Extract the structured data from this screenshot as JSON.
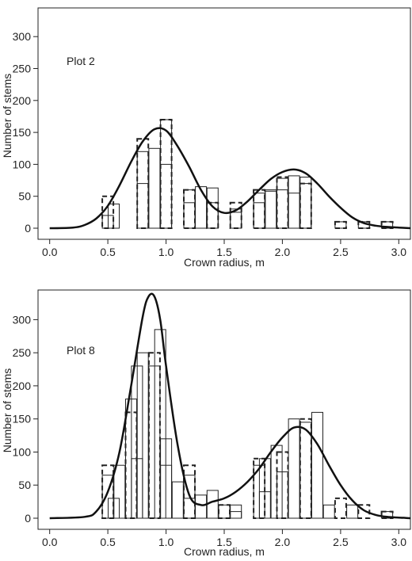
{
  "chart_data": [
    {
      "type": "bar",
      "annotation": "Plot 2",
      "xlabel": "Crown radius, m",
      "ylabel": "Number of stems",
      "xlim": [
        -0.1,
        3.1
      ],
      "ylim": [
        0,
        340
      ],
      "xticks": [
        "0.0",
        "0.5",
        "1.0",
        "1.5",
        "2.0",
        "2.5",
        "3.0"
      ],
      "yticks": [
        "0",
        "50",
        "100",
        "150",
        "200",
        "250",
        "300"
      ],
      "bar_width": 0.095,
      "series": [
        {
          "style": "solid-tall",
          "x": [
            0.55,
            0.8,
            0.9,
            1.0,
            1.2,
            1.3,
            1.4,
            1.6,
            1.8,
            1.9,
            2.0,
            2.1,
            2.2,
            2.5,
            2.7,
            2.9
          ],
          "values": [
            38,
            120,
            125,
            170,
            60,
            65,
            63,
            30,
            55,
            58,
            78,
            82,
            80,
            10,
            10,
            10
          ]
        },
        {
          "style": "solid-short",
          "x": [
            0.5,
            0.8,
            1.0,
            1.2,
            1.4,
            1.6,
            1.8,
            1.9,
            2.0,
            2.1,
            2.2
          ],
          "values": [
            20,
            70,
            100,
            40,
            40,
            25,
            40,
            60,
            60,
            55,
            70
          ]
        },
        {
          "style": "dashed",
          "x": [
            0.5,
            0.8,
            1.0,
            1.2,
            1.4,
            1.6,
            1.8,
            2.0,
            2.2,
            2.5,
            2.7,
            2.9
          ],
          "values": [
            50,
            140,
            170,
            60,
            40,
            40,
            60,
            80,
            70,
            10,
            10,
            10
          ]
        }
      ],
      "curve": {
        "x": [
          0.0,
          0.2,
          0.3,
          0.4,
          0.5,
          0.6,
          0.7,
          0.8,
          0.9,
          1.0,
          1.1,
          1.2,
          1.3,
          1.4,
          1.5,
          1.6,
          1.7,
          1.8,
          1.9,
          2.0,
          2.1,
          2.2,
          2.3,
          2.4,
          2.5,
          2.6,
          2.7,
          2.8,
          2.9,
          3.0,
          3.1
        ],
        "y": [
          0,
          1,
          5,
          15,
          35,
          67,
          104,
          136,
          155,
          153,
          128,
          96,
          60,
          34,
          24,
          28,
          42,
          60,
          77,
          88,
          92,
          86,
          70,
          50,
          32,
          17,
          8,
          4,
          2,
          1,
          0
        ]
      }
    },
    {
      "type": "bar",
      "annotation": "Plot 8",
      "xlabel": "Crown radius, m",
      "ylabel": "Number of stems",
      "xlim": [
        -0.1,
        3.1
      ],
      "ylim": [
        0,
        340
      ],
      "xticks": [
        "0.0",
        "0.5",
        "1.0",
        "1.5",
        "2.0",
        "2.5",
        "3.0"
      ],
      "yticks": [
        "0",
        "50",
        "100",
        "150",
        "200",
        "250",
        "300"
      ],
      "bar_width": 0.095,
      "series": [
        {
          "style": "solid-tall",
          "x": [
            0.5,
            0.6,
            0.7,
            0.75,
            0.8,
            0.9,
            0.95,
            1.0,
            1.1,
            1.2,
            1.3,
            1.4,
            1.5,
            1.6,
            1.8,
            1.85,
            1.95,
            2.1,
            2.3,
            2.4,
            2.6,
            2.9
          ],
          "values": [
            65,
            80,
            180,
            230,
            250,
            230,
            285,
            80,
            55,
            65,
            35,
            42,
            20,
            20,
            80,
            90,
            110,
            150,
            160,
            20,
            20,
            10
          ]
        },
        {
          "style": "solid-short",
          "x": [
            0.55,
            0.75,
            1.0,
            1.2,
            1.6,
            1.85,
            2.0,
            2.2
          ],
          "values": [
            30,
            90,
            120,
            30,
            10,
            40,
            70,
            145
          ]
        },
        {
          "style": "dashed",
          "x": [
            0.5,
            0.7,
            0.9,
            1.2,
            1.5,
            1.8,
            2.0,
            2.2,
            2.5,
            2.7,
            2.9
          ],
          "values": [
            80,
            160,
            250,
            80,
            20,
            90,
            100,
            150,
            30,
            20,
            10
          ]
        }
      ],
      "curve": {
        "x": [
          0.0,
          0.3,
          0.4,
          0.5,
          0.6,
          0.7,
          0.8,
          0.85,
          0.9,
          0.95,
          1.0,
          1.1,
          1.2,
          1.3,
          1.4,
          1.5,
          1.6,
          1.7,
          1.8,
          1.9,
          2.0,
          2.1,
          2.2,
          2.3,
          2.4,
          2.5,
          2.6,
          2.7,
          2.8,
          2.9,
          3.0,
          3.1
        ],
        "y": [
          0,
          2,
          10,
          40,
          100,
          200,
          305,
          335,
          335,
          300,
          230,
          110,
          35,
          20,
          25,
          30,
          40,
          55,
          75,
          100,
          122,
          137,
          134,
          112,
          80,
          50,
          27,
          12,
          5,
          2,
          1,
          0
        ]
      }
    }
  ]
}
